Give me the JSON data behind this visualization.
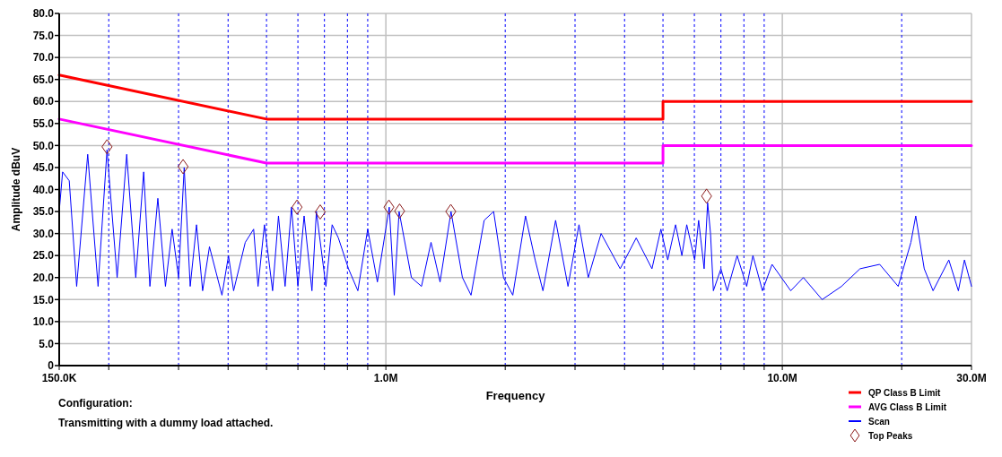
{
  "chart_data": {
    "type": "line",
    "xlabel": "Frequency",
    "ylabel": "Amplitude dBuV",
    "log": "x",
    "grid": true,
    "legend": "bottom right",
    "xlim": [
      150000,
      30000000
    ],
    "xticks": [
      {
        "value": 150000,
        "label": "150.0K"
      },
      {
        "value": 200000,
        "label": null
      },
      {
        "value": 300000,
        "label": null
      },
      {
        "value": 400000,
        "label": null
      },
      {
        "value": 500000,
        "label": null
      },
      {
        "value": 600000,
        "label": null
      },
      {
        "value": 700000,
        "label": null
      },
      {
        "value": 800000,
        "label": null
      },
      {
        "value": 900000,
        "label": null
      },
      {
        "value": 1000000,
        "label": "1.0M"
      },
      {
        "value": 2000000,
        "label": null
      },
      {
        "value": 3000000,
        "label": null
      },
      {
        "value": 4000000,
        "label": null
      },
      {
        "value": 5000000,
        "label": null
      },
      {
        "value": 6000000,
        "label": null
      },
      {
        "value": 7000000,
        "label": null
      },
      {
        "value": 8000000,
        "label": null
      },
      {
        "value": 9000000,
        "label": null
      },
      {
        "value": 10000000,
        "label": "10.0M"
      },
      {
        "value": 20000000,
        "label": null
      },
      {
        "value": 30000000,
        "label": "30.0M"
      }
    ],
    "ylim": [
      0,
      80
    ],
    "yticks": [
      0,
      {
        "value": 5,
        "label": "5.0"
      },
      {
        "value": 10,
        "label": "10.0"
      },
      {
        "value": 15,
        "label": "15.0"
      },
      {
        "value": 20,
        "label": "20.0"
      },
      {
        "value": 25,
        "label": "25.0"
      },
      {
        "value": 30,
        "label": "30.0"
      },
      {
        "value": 35,
        "label": "35.0"
      },
      {
        "value": 40,
        "label": "40.0"
      },
      {
        "value": 45,
        "label": "45.0"
      },
      {
        "value": 50,
        "label": "50.0"
      },
      {
        "value": 55,
        "label": "55.0"
      },
      {
        "value": 60,
        "label": "60.0"
      },
      {
        "value": 65,
        "label": "65.0"
      },
      {
        "value": 70,
        "label": "70.0"
      },
      {
        "value": 75,
        "label": "75.0"
      },
      {
        "value": 80,
        "label": "80.0"
      }
    ],
    "annotations": [
      "Configuration:",
      "Transmitting with a dummy load attached."
    ],
    "series": [
      {
        "name": "QP Class B Limit",
        "color": "#ff0000",
        "x": [
          150000,
          500000,
          5000000,
          5000000,
          30000000
        ],
        "values": [
          66,
          56,
          56,
          60,
          60
        ]
      },
      {
        "name": "AVG Class B Limit",
        "color": "#ff00ff",
        "x": [
          150000,
          500000,
          5000000,
          5000000,
          30000000
        ],
        "values": [
          56,
          46,
          46,
          50,
          50
        ]
      },
      {
        "name": "Scan",
        "color": "#0000ff",
        "x": [
          150000,
          153000,
          159000,
          166000,
          177000,
          188000,
          198000,
          210000,
          222000,
          234000,
          245000,
          254000,
          266000,
          278000,
          289000,
          300000,
          310000,
          321000,
          333000,
          345000,
          359000,
          386000,
          401000,
          413000,
          442000,
          464000,
          476000,
          494000,
          518000,
          536000,
          557000,
          578000,
          600000,
          622000,
          651000,
          668000,
          706000,
          732000,
          759000,
          805000,
          850000,
          900000,
          952000,
          1020000,
          1050000,
          1080000,
          1160000,
          1230000,
          1300000,
          1370000,
          1460000,
          1560000,
          1640000,
          1770000,
          1870000,
          1980000,
          2090000,
          2250000,
          2380000,
          2490000,
          2680000,
          2880000,
          3070000,
          3240000,
          3490000,
          3900000,
          4280000,
          4690000,
          4940000,
          5140000,
          5380000,
          5580000,
          5740000,
          6010000,
          6150000,
          6350000,
          6480000,
          6590000,
          6700000,
          7000000,
          7260000,
          7690000,
          8130000,
          8430000,
          8910000,
          9420000,
          10500000,
          11300000,
          12600000,
          14100000,
          15700000,
          17600000,
          19600000,
          21100000,
          21700000,
          22800000,
          24000000,
          26300000,
          27800000,
          28800000,
          30000000
        ],
        "values": [
          35,
          44,
          42,
          18,
          48,
          18,
          49,
          20,
          48,
          20,
          44,
          18,
          38,
          18,
          31,
          20,
          45,
          18,
          32,
          17,
          27,
          16,
          25,
          17,
          28,
          31,
          18,
          32,
          17,
          34,
          18,
          36,
          18,
          34,
          17,
          35,
          18,
          32,
          29,
          22,
          17,
          31,
          19,
          36,
          16,
          35,
          20,
          18,
          28,
          19,
          35,
          20,
          16,
          33,
          35,
          20,
          16,
          34,
          24,
          17,
          33,
          18,
          32,
          20,
          30,
          22,
          29,
          22,
          31,
          24,
          32,
          25,
          32,
          24,
          33,
          22,
          37,
          30,
          17,
          22,
          17,
          25,
          18,
          25,
          17,
          23,
          17,
          20,
          15,
          18,
          22,
          23,
          18,
          28,
          34,
          22,
          17,
          24,
          17,
          24,
          18
        ]
      },
      {
        "name": "Top Peaks",
        "type": "scatter",
        "marker": "diamond",
        "color": "#8b1a1a",
        "x": [
          198000,
          308000,
          597000,
          683000,
          1018000,
          1083000,
          1458000,
          6440000
        ],
        "values": [
          49.7,
          45.2,
          36,
          34.9,
          36,
          35.1,
          35,
          38.5
        ]
      }
    ]
  }
}
